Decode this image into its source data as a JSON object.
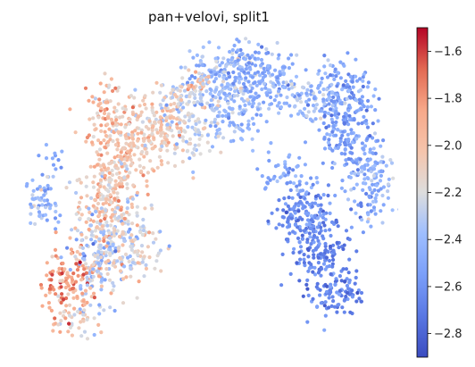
{
  "chart_data": {
    "type": "scatter",
    "title": "pan+velovi, split1",
    "xlabel": "",
    "ylabel": "",
    "axes_visible": false,
    "colormap": "coolwarm",
    "colorbar": {
      "vmin": -2.9,
      "vmax": -1.5,
      "ticks": [
        -1.6,
        -1.8,
        -2.0,
        -2.2,
        -2.4,
        -2.6,
        -2.8
      ],
      "tick_labels": [
        "−1.6",
        "−1.8",
        "−2.0",
        "−2.2",
        "−2.4",
        "−2.6",
        "−2.8"
      ]
    },
    "xlim": [
      0,
      100
    ],
    "ylim": [
      0,
      100
    ],
    "regions": [
      {
        "x": 5,
        "y": 47,
        "sx": 2.2,
        "sy": 4,
        "n": 60,
        "value": -2.42,
        "spread": 0.12
      },
      {
        "x": 8,
        "y": 60,
        "sx": 1.5,
        "sy": 2,
        "n": 12,
        "value": -2.55,
        "spread": 0.1
      },
      {
        "x": 12,
        "y": 22,
        "sx": 3.5,
        "sy": 5,
        "n": 120,
        "value": -1.82,
        "spread": 0.15
      },
      {
        "x": 13,
        "y": 9,
        "sx": 3,
        "sy": 3,
        "n": 40,
        "value": -2.12,
        "spread": 0.15
      },
      {
        "x": 20,
        "y": 30,
        "sx": 4,
        "sy": 7,
        "n": 200,
        "value": -2.28,
        "spread": 0.18
      },
      {
        "x": 22,
        "y": 48,
        "sx": 4,
        "sy": 7,
        "n": 180,
        "value": -2.05,
        "spread": 0.15
      },
      {
        "x": 26,
        "y": 64,
        "sx": 4,
        "sy": 6,
        "n": 160,
        "value": -2.0,
        "spread": 0.12
      },
      {
        "x": 22,
        "y": 78,
        "sx": 3,
        "sy": 4,
        "n": 50,
        "value": -2.02,
        "spread": 0.15
      },
      {
        "x": 34,
        "y": 70,
        "sx": 5,
        "sy": 6,
        "n": 160,
        "value": -2.08,
        "spread": 0.12
      },
      {
        "x": 30,
        "y": 35,
        "sx": 4,
        "sy": 6,
        "n": 120,
        "value": -2.22,
        "spread": 0.15
      },
      {
        "x": 42,
        "y": 78,
        "sx": 4,
        "sy": 4,
        "n": 90,
        "value": -2.18,
        "spread": 0.12
      },
      {
        "x": 45,
        "y": 68,
        "sx": 4,
        "sy": 4,
        "n": 60,
        "value": -2.28,
        "spread": 0.12
      },
      {
        "x": 47,
        "y": 85,
        "sx": 2,
        "sy": 2,
        "n": 25,
        "value": -1.95,
        "spread": 0.12
      },
      {
        "x": 52,
        "y": 85,
        "sx": 6,
        "sy": 5,
        "n": 150,
        "value": -2.4,
        "spread": 0.12
      },
      {
        "x": 58,
        "y": 92,
        "sx": 5,
        "sy": 3,
        "n": 90,
        "value": -2.45,
        "spread": 0.1
      },
      {
        "x": 57,
        "y": 75,
        "sx": 5,
        "sy": 5,
        "n": 90,
        "value": -2.42,
        "spread": 0.1
      },
      {
        "x": 66,
        "y": 85,
        "sx": 5,
        "sy": 4,
        "n": 110,
        "value": -2.48,
        "spread": 0.1
      },
      {
        "x": 75,
        "y": 80,
        "sx": 4,
        "sy": 3,
        "n": 60,
        "value": -2.38,
        "spread": 0.1
      },
      {
        "x": 85,
        "y": 80,
        "sx": 4,
        "sy": 6,
        "n": 180,
        "value": -2.5,
        "spread": 0.1
      },
      {
        "x": 87,
        "y": 65,
        "sx": 4,
        "sy": 6,
        "n": 120,
        "value": -2.52,
        "spread": 0.1
      },
      {
        "x": 92,
        "y": 52,
        "sx": 3,
        "sy": 7,
        "n": 110,
        "value": -2.45,
        "spread": 0.12
      },
      {
        "x": 75,
        "y": 42,
        "sx": 4,
        "sy": 6,
        "n": 160,
        "value": -2.62,
        "spread": 0.1
      },
      {
        "x": 80,
        "y": 30,
        "sx": 4,
        "sy": 7,
        "n": 150,
        "value": -2.66,
        "spread": 0.08
      },
      {
        "x": 84,
        "y": 18,
        "sx": 3,
        "sy": 4,
        "n": 70,
        "value": -2.68,
        "spread": 0.08
      },
      {
        "x": 70,
        "y": 55,
        "sx": 3,
        "sy": 4,
        "n": 40,
        "value": -2.48,
        "spread": 0.1
      }
    ]
  }
}
